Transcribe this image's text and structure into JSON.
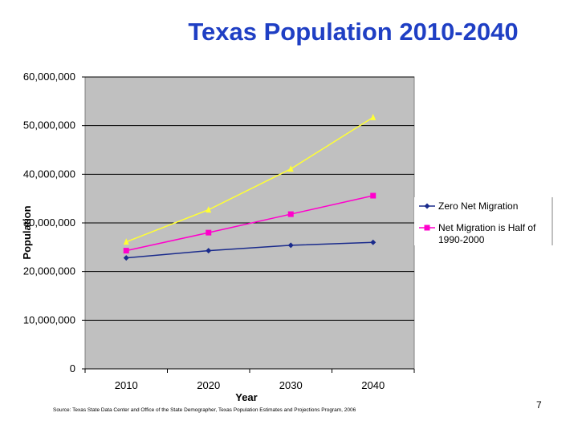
{
  "slide": {
    "title": "Texas Population 2010-2040",
    "source": "Source: Texas State Data Center and Office of the State Demographer, Texas Population Estimates and Projections Program, 2006",
    "page_number": "7"
  },
  "chart_data": {
    "type": "line",
    "title": "",
    "xlabel": "Year",
    "ylabel": "Population",
    "categories": [
      "2010",
      "2020",
      "2030",
      "2040"
    ],
    "ylim": [
      0,
      60000000
    ],
    "y_ticks": [
      0,
      10000000,
      20000000,
      30000000,
      40000000,
      50000000,
      60000000
    ],
    "y_tick_labels": [
      "0",
      "10,000,000",
      "20,000,000",
      "30,000,000",
      "40,000,000",
      "50,000,000",
      "60,000,000"
    ],
    "grid": "horizontal",
    "legend_position": "right",
    "series": [
      {
        "name": "Zero Net Migration",
        "values": [
          22800000,
          24300000,
          25400000,
          26000000
        ],
        "color": "#1a2b8c",
        "marker": "diamond"
      },
      {
        "name": "Net Migration is Half of 1990-2000",
        "legend_lines": [
          "Net Migration is Half of",
          "1990-2000"
        ],
        "values": [
          24300000,
          28000000,
          31800000,
          35600000
        ],
        "color": "#ff00cc",
        "marker": "square"
      },
      {
        "values": [
          26100000,
          32700000,
          41100000,
          51700000
        ],
        "color": "#ffff33",
        "marker": "triangle"
      }
    ],
    "colors": {
      "plot_background": "#c0c0c0",
      "gridline": "#000000"
    }
  }
}
